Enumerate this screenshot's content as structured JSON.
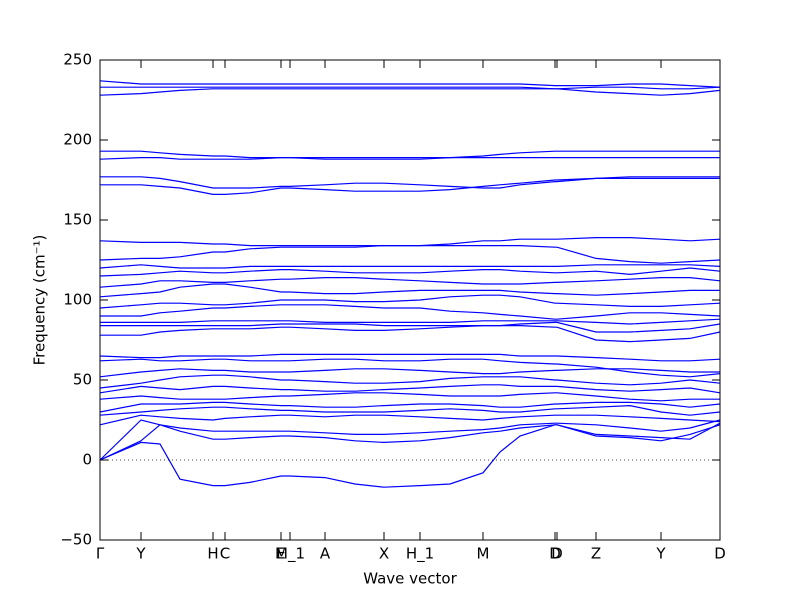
{
  "chart_data": {
    "type": "line",
    "xlabel": "Wave vector",
    "ylabel": "Frequency (cm⁻¹)",
    "color": "#0000ff",
    "hline": 0,
    "xlim": [
      0,
      620
    ],
    "ylim": [
      -50,
      250
    ],
    "yticks": [
      {
        "value": -50,
        "label": "−50"
      },
      0,
      50,
      100,
      150,
      200,
      250
    ],
    "xticks": [
      {
        "value": 0,
        "label": "Γ"
      },
      {
        "value": 41,
        "label": "Y"
      },
      {
        "value": 113,
        "label": "H"
      },
      {
        "value": 125,
        "label": "C"
      },
      {
        "value": 181,
        "label": "E"
      },
      {
        "value": 190,
        "label": "M_1"
      },
      {
        "value": 225,
        "label": "A"
      },
      {
        "value": 284,
        "label": "X"
      },
      {
        "value": 320,
        "label": "H_1"
      },
      {
        "value": 383,
        "label": "M"
      },
      {
        "value": 455,
        "label": "D"
      },
      {
        "value": 457,
        "label": "D"
      },
      {
        "value": 496,
        "label": "Z"
      },
      {
        "value": 561,
        "label": "Y"
      },
      {
        "value": 620,
        "label": "D"
      }
    ],
    "x": [
      0,
      41,
      60,
      80,
      113,
      125,
      150,
      181,
      190,
      225,
      255,
      284,
      320,
      350,
      383,
      400,
      420,
      455,
      457,
      496,
      530,
      561,
      590,
      620
    ],
    "series": [
      {
        "values": [
          0,
          11,
          10,
          -12,
          -16,
          -16,
          -14,
          -10,
          -10,
          -11,
          -15,
          -17,
          -16,
          -15,
          -8,
          5,
          15,
          22,
          22,
          15,
          14,
          12,
          16,
          22
        ]
      },
      {
        "values": [
          0,
          12,
          22,
          18,
          13,
          13,
          14,
          15,
          15,
          14,
          12,
          11,
          12,
          14,
          17,
          18,
          20,
          22,
          22,
          16,
          15,
          14,
          13,
          23
        ]
      },
      {
        "values": [
          0,
          25,
          22,
          20,
          18,
          18,
          18,
          18,
          18,
          17,
          16,
          16,
          17,
          18,
          19,
          20,
          22,
          23,
          23,
          22,
          20,
          18,
          20,
          25
        ]
      },
      {
        "values": [
          22,
          28,
          27,
          26,
          25,
          26,
          27,
          28,
          28,
          27,
          28,
          28,
          27,
          26,
          25,
          26,
          27,
          28,
          28,
          28,
          27,
          26,
          25,
          24
        ]
      },
      {
        "values": [
          28,
          30,
          31,
          32,
          33,
          33,
          32,
          31,
          31,
          30,
          30,
          30,
          31,
          32,
          31,
          30,
          30,
          32,
          32,
          33,
          34,
          30,
          28,
          30
        ]
      },
      {
        "values": [
          30,
          35,
          35,
          35,
          36,
          36,
          35,
          34,
          34,
          33,
          33,
          34,
          35,
          35,
          34,
          33,
          33,
          35,
          35,
          36,
          36,
          35,
          33,
          35
        ]
      },
      {
        "values": [
          38,
          40,
          39,
          38,
          38,
          38,
          39,
          40,
          40,
          41,
          42,
          42,
          41,
          40,
          40,
          40,
          41,
          42,
          42,
          40,
          38,
          37,
          38,
          38
        ]
      },
      {
        "values": [
          42,
          46,
          45,
          44,
          46,
          46,
          45,
          44,
          44,
          43,
          43,
          44,
          45,
          46,
          47,
          47,
          46,
          46,
          46,
          44,
          43,
          44,
          45,
          42
        ]
      },
      {
        "values": [
          45,
          48,
          50,
          52,
          53,
          53,
          52,
          50,
          50,
          49,
          48,
          48,
          49,
          51,
          52,
          52,
          52,
          50,
          50,
          48,
          47,
          48,
          50,
          48
        ]
      },
      {
        "values": [
          52,
          55,
          56,
          57,
          56,
          56,
          55,
          55,
          55,
          56,
          57,
          57,
          56,
          55,
          54,
          54,
          55,
          56,
          56,
          57,
          57,
          56,
          55,
          55
        ]
      },
      {
        "values": [
          62,
          63,
          62,
          62,
          63,
          63,
          62,
          62,
          62,
          63,
          63,
          62,
          62,
          63,
          63,
          62,
          61,
          60,
          60,
          58,
          55,
          53,
          52,
          54
        ]
      },
      {
        "values": [
          65,
          64,
          64,
          65,
          65,
          65,
          65,
          66,
          66,
          66,
          66,
          66,
          66,
          66,
          66,
          66,
          65,
          65,
          65,
          64,
          63,
          62,
          62,
          63
        ]
      },
      {
        "values": [
          78,
          78,
          80,
          81,
          82,
          82,
          82,
          83,
          83,
          82,
          81,
          81,
          82,
          83,
          84,
          84,
          84,
          83,
          83,
          75,
          74,
          75,
          76,
          80
        ]
      },
      {
        "values": [
          84,
          84,
          84,
          84,
          84,
          84,
          84,
          85,
          85,
          85,
          85,
          84,
          84,
          84,
          84,
          84,
          85,
          86,
          86,
          80,
          80,
          81,
          82,
          85
        ]
      },
      {
        "values": [
          86,
          86,
          86,
          86,
          87,
          87,
          87,
          87,
          87,
          86,
          86,
          86,
          86,
          86,
          87,
          87,
          87,
          87,
          87,
          86,
          85,
          86,
          87,
          88
        ]
      },
      {
        "values": [
          90,
          90,
          92,
          93,
          95,
          95,
          96,
          97,
          97,
          97,
          96,
          95,
          95,
          93,
          92,
          91,
          90,
          88,
          88,
          90,
          92,
          92,
          91,
          90
        ]
      },
      {
        "values": [
          95,
          97,
          98,
          98,
          97,
          97,
          98,
          100,
          100,
          100,
          99,
          99,
          100,
          102,
          103,
          103,
          102,
          98,
          98,
          97,
          96,
          96,
          97,
          98
        ]
      },
      {
        "values": [
          102,
          104,
          105,
          108,
          110,
          110,
          108,
          105,
          105,
          104,
          104,
          105,
          106,
          106,
          106,
          106,
          105,
          104,
          104,
          103,
          104,
          105,
          106,
          106
        ]
      },
      {
        "values": [
          108,
          110,
          112,
          112,
          111,
          111,
          112,
          113,
          113,
          114,
          114,
          113,
          112,
          111,
          110,
          110,
          110,
          111,
          111,
          112,
          113,
          114,
          114,
          112
        ]
      },
      {
        "values": [
          115,
          116,
          117,
          118,
          117,
          117,
          118,
          119,
          119,
          118,
          117,
          117,
          117,
          118,
          119,
          119,
          118,
          117,
          117,
          118,
          116,
          118,
          120,
          118
        ]
      },
      {
        "values": [
          120,
          122,
          121,
          120,
          120,
          120,
          121,
          121,
          121,
          121,
          121,
          121,
          121,
          121,
          121,
          121,
          121,
          121,
          121,
          122,
          122,
          122,
          122,
          121
        ]
      },
      {
        "values": [
          125,
          126,
          126,
          127,
          130,
          130,
          132,
          133,
          133,
          133,
          133,
          134,
          134,
          134,
          134,
          134,
          134,
          133,
          133,
          126,
          124,
          123,
          124,
          125
        ]
      },
      {
        "values": [
          137,
          136,
          136,
          136,
          135,
          135,
          134,
          134,
          134,
          134,
          134,
          134,
          134,
          135,
          137,
          137,
          138,
          138,
          138,
          139,
          139,
          138,
          137,
          138
        ]
      },
      {
        "values": [
          172,
          172,
          171,
          170,
          166,
          166,
          167,
          170,
          170,
          169,
          168,
          168,
          168,
          169,
          171,
          172,
          173,
          175,
          175,
          176,
          176,
          176,
          176,
          176
        ]
      },
      {
        "values": [
          177,
          177,
          176,
          174,
          170,
          170,
          170,
          171,
          171,
          172,
          173,
          173,
          172,
          171,
          170,
          170,
          172,
          174,
          174,
          176,
          177,
          177,
          177,
          177
        ]
      },
      {
        "values": [
          188,
          189,
          189,
          188,
          188,
          188,
          188,
          189,
          189,
          188,
          188,
          188,
          188,
          189,
          189,
          189,
          189,
          189,
          189,
          189,
          189,
          189,
          189,
          189
        ]
      },
      {
        "values": [
          193,
          193,
          192,
          191,
          190,
          190,
          189,
          189,
          189,
          189,
          189,
          189,
          189,
          189,
          190,
          191,
          192,
          193,
          193,
          193,
          193,
          193,
          193,
          193
        ]
      },
      {
        "values": [
          228,
          229,
          230,
          231,
          232,
          232,
          232,
          232,
          232,
          232,
          232,
          232,
          232,
          232,
          232,
          232,
          232,
          232,
          232,
          230,
          229,
          228,
          229,
          231
        ]
      },
      {
        "values": [
          233,
          233,
          233,
          233,
          233,
          233,
          233,
          233,
          233,
          233,
          233,
          233,
          233,
          233,
          233,
          233,
          233,
          232,
          232,
          233,
          233,
          232,
          232,
          233
        ]
      },
      {
        "values": [
          237,
          235,
          235,
          235,
          235,
          235,
          235,
          235,
          235,
          235,
          235,
          235,
          235,
          235,
          235,
          235,
          235,
          234,
          234,
          234,
          235,
          235,
          234,
          233
        ]
      }
    ]
  }
}
